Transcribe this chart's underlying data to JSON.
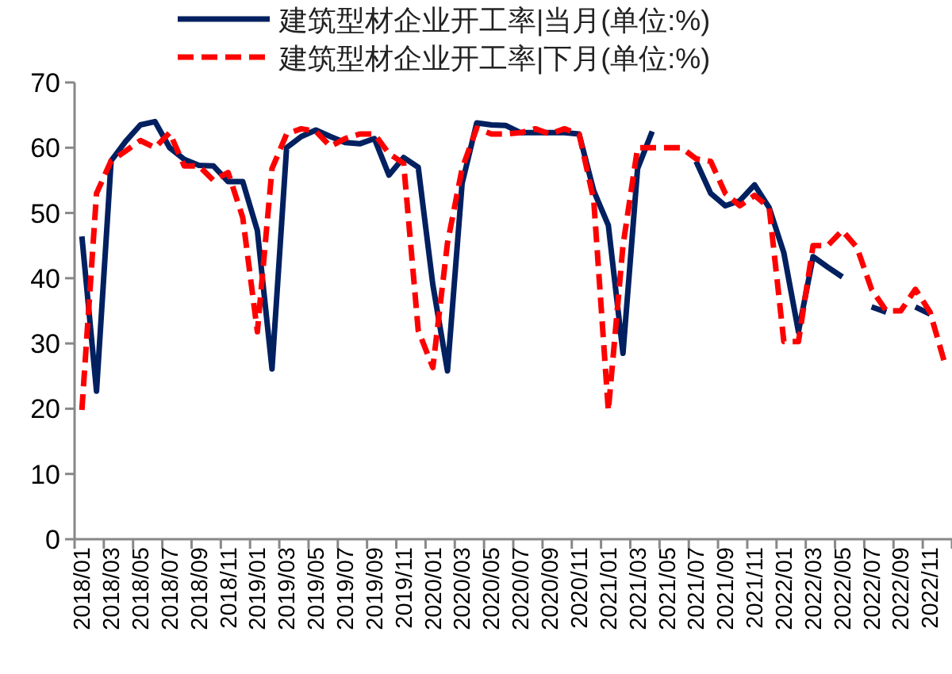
{
  "chart_data": {
    "type": "line",
    "categories": [
      "2018/01",
      null,
      "2018/03",
      null,
      "2018/05",
      null,
      "2018/07",
      null,
      "2018/09",
      null,
      "2018/11",
      null,
      "2019/01",
      null,
      "2019/03",
      null,
      "2019/05",
      null,
      "2019/07",
      null,
      "2019/09",
      null,
      "2019/11",
      null,
      "2020/01",
      null,
      "2020/03",
      null,
      "2020/05",
      null,
      "2020/07",
      null,
      "2020/09",
      null,
      "2020/11",
      null,
      "2021/01",
      null,
      "2021/03",
      null,
      "2021/05",
      null,
      "2021/07",
      null,
      "2021/09",
      null,
      "2021/11",
      null,
      "2022/01",
      null,
      "2022/03",
      null,
      "2022/05",
      null,
      "2022/07",
      null,
      "2022/09",
      null,
      "2022/11",
      null
    ],
    "series": [
      {
        "name": "建筑型材企业开工率|当月(单位:%)",
        "color": "#002060",
        "line_style": "solid",
        "values": [
          46.4,
          22.7,
          58,
          61,
          63.5,
          64,
          60,
          58.2,
          57.3,
          57.2,
          54.8,
          54.8,
          47.3,
          26.1,
          60,
          61.7,
          62.7,
          61.7,
          60.8,
          60.6,
          61.4,
          55.8,
          58.5,
          57,
          39,
          25.8,
          54.5,
          63.8,
          63.5,
          63.4,
          62.3,
          62.3,
          62.3,
          62.3,
          62.1,
          53.4,
          48.1,
          28.5,
          56.8,
          62.5,
          null,
          null,
          57.9,
          53,
          51.1,
          51.9,
          54.3,
          50.8,
          43.9,
          31.8,
          43.3,
          41.7,
          40.2,
          null,
          35.6,
          34.8,
          null,
          35.6,
          34.5,
          null
        ]
      },
      {
        "name": "建筑型材企业开工率|下月(单位:%)",
        "color": "#ff0000",
        "line_style": "dashed",
        "values": [
          19.8,
          53,
          58,
          59.5,
          61.1,
          60,
          62.3,
          57.2,
          57.2,
          55,
          56.2,
          49.3,
          31.8,
          56.8,
          62.1,
          62.9,
          62.5,
          60.2,
          61.4,
          62.1,
          62.1,
          59.1,
          57.6,
          32,
          26.3,
          45.4,
          56.8,
          63,
          62.1,
          62.1,
          62.3,
          62.9,
          62.1,
          62.9,
          62.1,
          52,
          19.7,
          45,
          60,
          60,
          60,
          60,
          58.3,
          57.9,
          53,
          51.1,
          52.7,
          50.8,
          30.3,
          30.3,
          45,
          45,
          47.3,
          44.7,
          38.3,
          35,
          35,
          38.3,
          34.8,
          27
        ]
      }
    ],
    "ylim": [
      0,
      70
    ],
    "yticks": [
      0,
      10,
      20,
      30,
      40,
      50,
      60,
      70
    ],
    "grid": false,
    "legend": "top",
    "marker": "none"
  }
}
